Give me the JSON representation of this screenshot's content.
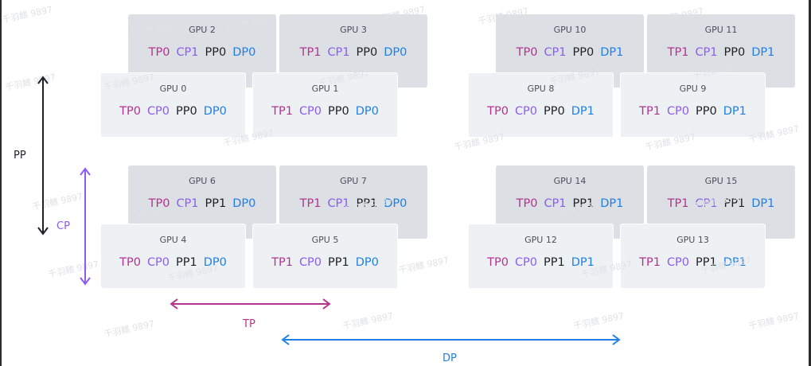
{
  "gpus": [
    {
      "name": "GPU 0",
      "tp": "TP0",
      "cp": "CP0",
      "pp": "PP0",
      "dp": "DP0"
    },
    {
      "name": "GPU 1",
      "tp": "TP1",
      "cp": "CP0",
      "pp": "PP0",
      "dp": "DP0"
    },
    {
      "name": "GPU 2",
      "tp": "TP0",
      "cp": "CP1",
      "pp": "PP0",
      "dp": "DP0"
    },
    {
      "name": "GPU 3",
      "tp": "TP1",
      "cp": "CP1",
      "pp": "PP0",
      "dp": "DP0"
    },
    {
      "name": "GPU 4",
      "tp": "TP0",
      "cp": "CP0",
      "pp": "PP1",
      "dp": "DP0"
    },
    {
      "name": "GPU 5",
      "tp": "TP1",
      "cp": "CP0",
      "pp": "PP1",
      "dp": "DP0"
    },
    {
      "name": "GPU 6",
      "tp": "TP0",
      "cp": "CP1",
      "pp": "PP1",
      "dp": "DP0"
    },
    {
      "name": "GPU 7",
      "tp": "TP1",
      "cp": "CP1",
      "pp": "PP1",
      "dp": "DP0"
    },
    {
      "name": "GPU 8",
      "tp": "TP0",
      "cp": "CP0",
      "pp": "PP0",
      "dp": "DP1"
    },
    {
      "name": "GPU 9",
      "tp": "TP1",
      "cp": "CP0",
      "pp": "PP0",
      "dp": "DP1"
    },
    {
      "name": "GPU 10",
      "tp": "TP0",
      "cp": "CP1",
      "pp": "PP0",
      "dp": "DP1"
    },
    {
      "name": "GPU 11",
      "tp": "TP1",
      "cp": "CP1",
      "pp": "PP0",
      "dp": "DP1"
    },
    {
      "name": "GPU 12",
      "tp": "TP0",
      "cp": "CP0",
      "pp": "PP1",
      "dp": "DP1"
    },
    {
      "name": "GPU 13",
      "tp": "TP1",
      "cp": "CP0",
      "pp": "PP1",
      "dp": "DP1"
    },
    {
      "name": "GPU 14",
      "tp": "TP0",
      "cp": "CP1",
      "pp": "PP1",
      "dp": "DP1"
    },
    {
      "name": "GPU 15",
      "tp": "TP1",
      "cp": "CP1",
      "pp": "PP1",
      "dp": "DP1"
    }
  ],
  "axes": {
    "pp": "PP",
    "cp": "CP",
    "tp": "TP",
    "dp": "DP"
  },
  "colors": {
    "tp": "#b3348f",
    "cp": "#8c5cf0",
    "pp": "#1e2126",
    "dp": "#1f7fe6",
    "front_card": "#eef1f4",
    "back_card": "#dcdfe3"
  },
  "watermark": "千羽鳍 9897"
}
